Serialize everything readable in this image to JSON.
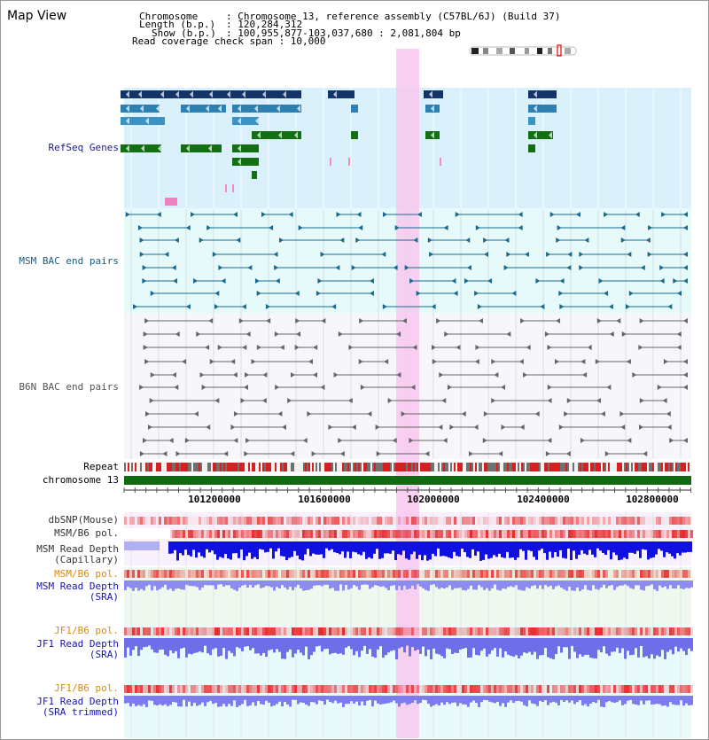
{
  "title": "Map View",
  "info": {
    "chromosome_key": "Chromosome",
    "chromosome_val": ": Chromosome 13, reference assembly (C57BL/6J) (Build 37)",
    "length_key": "Length (b.p.)",
    "length_val": ": 120,284,312",
    "show_key": "Show (b.p.)",
    "show_val": ": 100,955,877-103,037,680 : 2,081,804 bp",
    "coverage_line": "Read coverage check span : 10,000"
  },
  "tracks": {
    "refseq": "RefSeq Genes",
    "msm_bac": "MSM BAC end pairs",
    "b6n_bac": "B6N BAC end pairs",
    "repeat": "Repeat",
    "chromosome": "chromosome 13",
    "dbsnp": "dbSNP(Mouse)",
    "msm_b6_pol_1": "MSM/B6 pol.",
    "msm_depth_cap_1": "MSM Read Depth",
    "msm_depth_cap_2": "(Capillary)",
    "msm_b6_pol_2": "MSM/B6 pol.",
    "msm_depth_sra_1": "MSM Read Depth",
    "msm_depth_sra_2": "(SRA)",
    "jf1_b6_pol_1": "JF1/B6 pol.",
    "jf1_depth_sra_1": "JF1 Read Depth",
    "jf1_depth_sra_2": "(SRA)",
    "jf1_b6_pol_2": "JF1/B6 pol.",
    "jf1_depth_trim_1": "JF1 Read Depth",
    "jf1_depth_trim_2": "(SRA trimmed)"
  },
  "axis_ticks": [
    "101200000",
    "101600000",
    "102000000",
    "102400000",
    "102800000"
  ],
  "colors": {
    "refseq_label": "#1a1a8c",
    "msm_label": "#1a5a80",
    "b6n_label": "#555555",
    "pol_orange": "#e08a00",
    "depth_blue": "#1414b4",
    "highlight": "#f8c8ee"
  }
}
